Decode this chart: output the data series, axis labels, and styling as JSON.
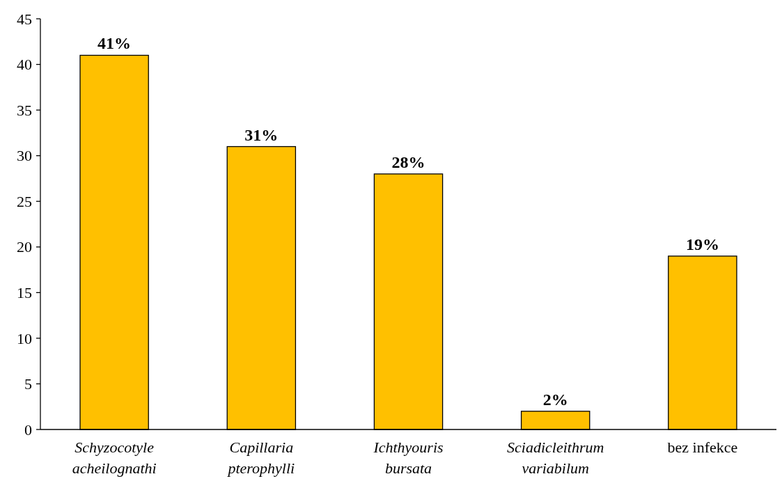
{
  "chart_data": {
    "type": "bar",
    "categories": [
      "Schyzocotyle acheilognathi",
      "Capillaria pterophylli",
      "Ichthyouris bursata",
      "Sciadicleithrum variabilum",
      "bez infekce"
    ],
    "values": [
      41,
      31,
      28,
      2,
      19
    ],
    "value_labels": [
      "41%",
      "31%",
      "28%",
      "2%",
      "19%"
    ],
    "color": "#ffc000",
    "ylim": [
      0,
      45
    ],
    "yticks": [
      0,
      5,
      10,
      15,
      20,
      25,
      30,
      35,
      40,
      45
    ],
    "grid": false
  }
}
